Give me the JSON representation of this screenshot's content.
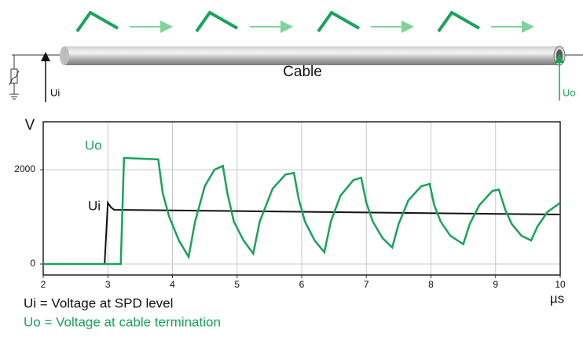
{
  "diagram": {
    "cable_label": "Cable",
    "ui_label": "Ui",
    "uo_label": "Uo"
  },
  "chart_data": {
    "type": "line",
    "ylabel": "V",
    "xlabel": "µs",
    "xlim": [
      2,
      10
    ],
    "xticks": [
      2,
      3,
      4,
      5,
      6,
      7,
      8,
      9,
      10
    ],
    "ylim": [
      -233,
      3017
    ],
    "yticks": [
      0,
      2000
    ],
    "grid": true,
    "series": [
      {
        "name": "Ui",
        "color": "#111111",
        "x": [
          2,
          2.95,
          3.0,
          3.05,
          3.1,
          10
        ],
        "values": [
          0,
          0,
          1300,
          1200,
          1150,
          1050
        ]
      },
      {
        "name": "Uo",
        "color": "#1aa35a",
        "x": [
          2,
          3.2,
          3.25,
          3.78,
          3.85,
          3.95,
          4.1,
          4.25,
          4.35,
          4.5,
          4.65,
          4.78,
          4.85,
          4.95,
          5.1,
          5.25,
          5.35,
          5.55,
          5.75,
          5.88,
          5.95,
          6.05,
          6.2,
          6.35,
          6.45,
          6.6,
          6.8,
          6.92,
          7.0,
          7.1,
          7.25,
          7.4,
          7.5,
          7.65,
          7.85,
          7.98,
          8.05,
          8.15,
          8.3,
          8.5,
          8.6,
          8.75,
          8.95,
          9.05,
          9.15,
          9.25,
          9.4,
          9.55,
          9.65,
          9.8,
          10
        ],
        "values": [
          0,
          0,
          2250,
          2220,
          1500,
          1000,
          500,
          150,
          900,
          1650,
          2000,
          2080,
          1500,
          900,
          500,
          220,
          900,
          1600,
          1900,
          1930,
          1400,
          900,
          500,
          250,
          900,
          1450,
          1780,
          1830,
          1300,
          900,
          550,
          350,
          850,
          1350,
          1650,
          1700,
          1250,
          900,
          600,
          420,
          850,
          1250,
          1550,
          1580,
          1150,
          850,
          600,
          500,
          800,
          1100,
          1300
        ]
      }
    ],
    "legend": [
      "Ui  = Voltage at SPD level",
      "Uo = Voltage at cable termination"
    ]
  }
}
